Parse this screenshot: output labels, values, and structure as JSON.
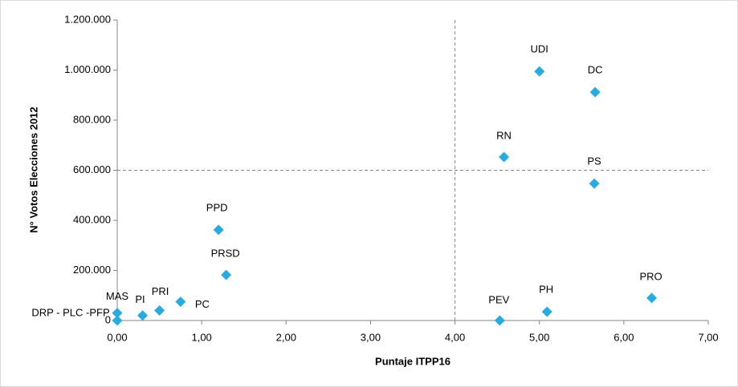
{
  "chart_data": {
    "type": "scatter",
    "xlabel": "Puntaje ITPP16",
    "ylabel": "N° Votos Elecciones 2012",
    "labels": [
      "DRP - PLC -PFP",
      "MAS",
      "PI",
      "PRI",
      "PC",
      "PPD",
      "PRSD",
      "PEV",
      "PH",
      "PRO",
      "RN",
      "UDI",
      "DC",
      "PS"
    ],
    "x": [
      0,
      0,
      0.3,
      0.5,
      0.75,
      1.2,
      1.29,
      4.53,
      5.09,
      6.33,
      4.58,
      5.0,
      5.66,
      5.65
    ],
    "values": [
      0,
      30000,
      20000,
      40000,
      75000,
      362000,
      182000,
      0,
      35000,
      90000,
      653000,
      995000,
      912000,
      547000
    ],
    "color": "#29abe2",
    "xlim": [
      0,
      7
    ],
    "xticks": [
      {
        "value": 0,
        "label": "0,00"
      },
      {
        "value": 1,
        "label": "1,00"
      },
      {
        "value": 2,
        "label": "2,00"
      },
      {
        "value": 3,
        "label": "3,00"
      },
      {
        "value": 4,
        "label": "4,00"
      },
      {
        "value": 5,
        "label": "5,00"
      },
      {
        "value": 6,
        "label": "6,00"
      },
      {
        "value": 7,
        "label": "7,00"
      }
    ],
    "ylim": [
      0,
      1200000
    ],
    "yticks": [
      0,
      {
        "value": 200000,
        "label": "200.000"
      },
      {
        "value": 400000,
        "label": "400.000"
      },
      {
        "value": 600000,
        "label": "600.000"
      },
      {
        "value": 800000,
        "label": "800.000"
      },
      {
        "value": 1000000,
        "label": "1.000.000"
      },
      {
        "value": 1200000,
        "label": "1.200.000"
      }
    ],
    "ref_x": 4,
    "ref_y": 600000
  }
}
